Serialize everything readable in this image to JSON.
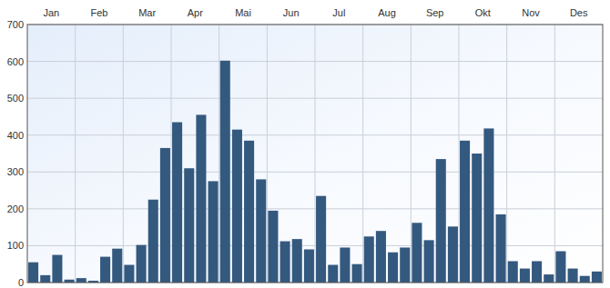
{
  "chart_data": {
    "type": "bar",
    "categories": [
      "Jan",
      null,
      null,
      null,
      "Feb",
      null,
      null,
      null,
      "Mar",
      null,
      null,
      null,
      "Apr",
      null,
      null,
      null,
      "Mai",
      null,
      null,
      null,
      "Jun",
      null,
      null,
      null,
      "Jul",
      null,
      null,
      null,
      "Aug",
      null,
      null,
      null,
      "Sep",
      null,
      null,
      null,
      "Okt",
      null,
      null,
      null,
      "Nov",
      null,
      null,
      null,
      "Des",
      null,
      null,
      null
    ],
    "values": [
      55,
      20,
      75,
      8,
      12,
      5,
      70,
      92,
      48,
      102,
      225,
      365,
      435,
      310,
      455,
      275,
      602,
      415,
      385,
      280,
      195,
      112,
      118,
      90,
      235,
      48,
      95,
      50,
      125,
      140,
      82,
      95,
      162,
      115,
      335,
      152,
      385,
      350,
      418,
      185,
      58,
      38,
      58,
      22,
      85,
      38,
      18,
      30
    ],
    "color": "#34597f",
    "ylim": [
      0,
      700
    ],
    "yticks": [
      0,
      100,
      200,
      300,
      400,
      500,
      600,
      700
    ],
    "grid": true
  }
}
